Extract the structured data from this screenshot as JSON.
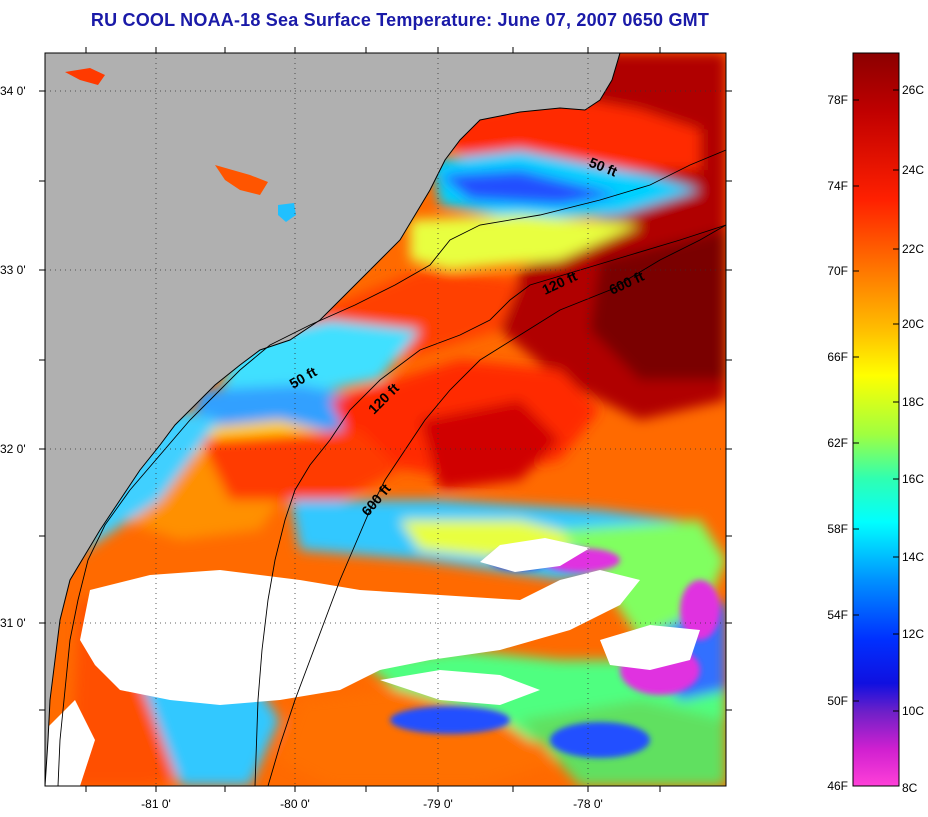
{
  "title": "RU COOL  NOAA-18  Sea Surface Temperature:  June 07, 2007 0650 GMT",
  "map": {
    "lat_labels": [
      "34 0'",
      "33 0'",
      "32 0'",
      "31 0'"
    ],
    "lon_labels": [
      "-81 0'",
      "-80 0'",
      "-79 0'",
      "-78 0'"
    ],
    "contour_labels": [
      "50 ft",
      "120 ft",
      "600 ft",
      "50 ft",
      "120 ft",
      "600 ft"
    ],
    "land_color": "#b0b0b0",
    "cloud_color": "#ffffff"
  },
  "colorbar": {
    "fahrenheit_labels": [
      "78F",
      "74F",
      "70F",
      "66F",
      "62F",
      "58F",
      "54F",
      "50F",
      "46F"
    ],
    "celsius_labels": [
      "26C",
      "24C",
      "22C",
      "20C",
      "18C",
      "16C",
      "14C",
      "12C",
      "10C",
      "8C"
    ],
    "gradient": [
      "#8b0000",
      "#d00000",
      "#ff3000",
      "#ff7a00",
      "#ffc800",
      "#ffff00",
      "#b0ff30",
      "#40ff90",
      "#00ffff",
      "#00a0ff",
      "#0040ff",
      "#1010e0",
      "#8020c0",
      "#d020d0",
      "#ff40d0"
    ]
  }
}
